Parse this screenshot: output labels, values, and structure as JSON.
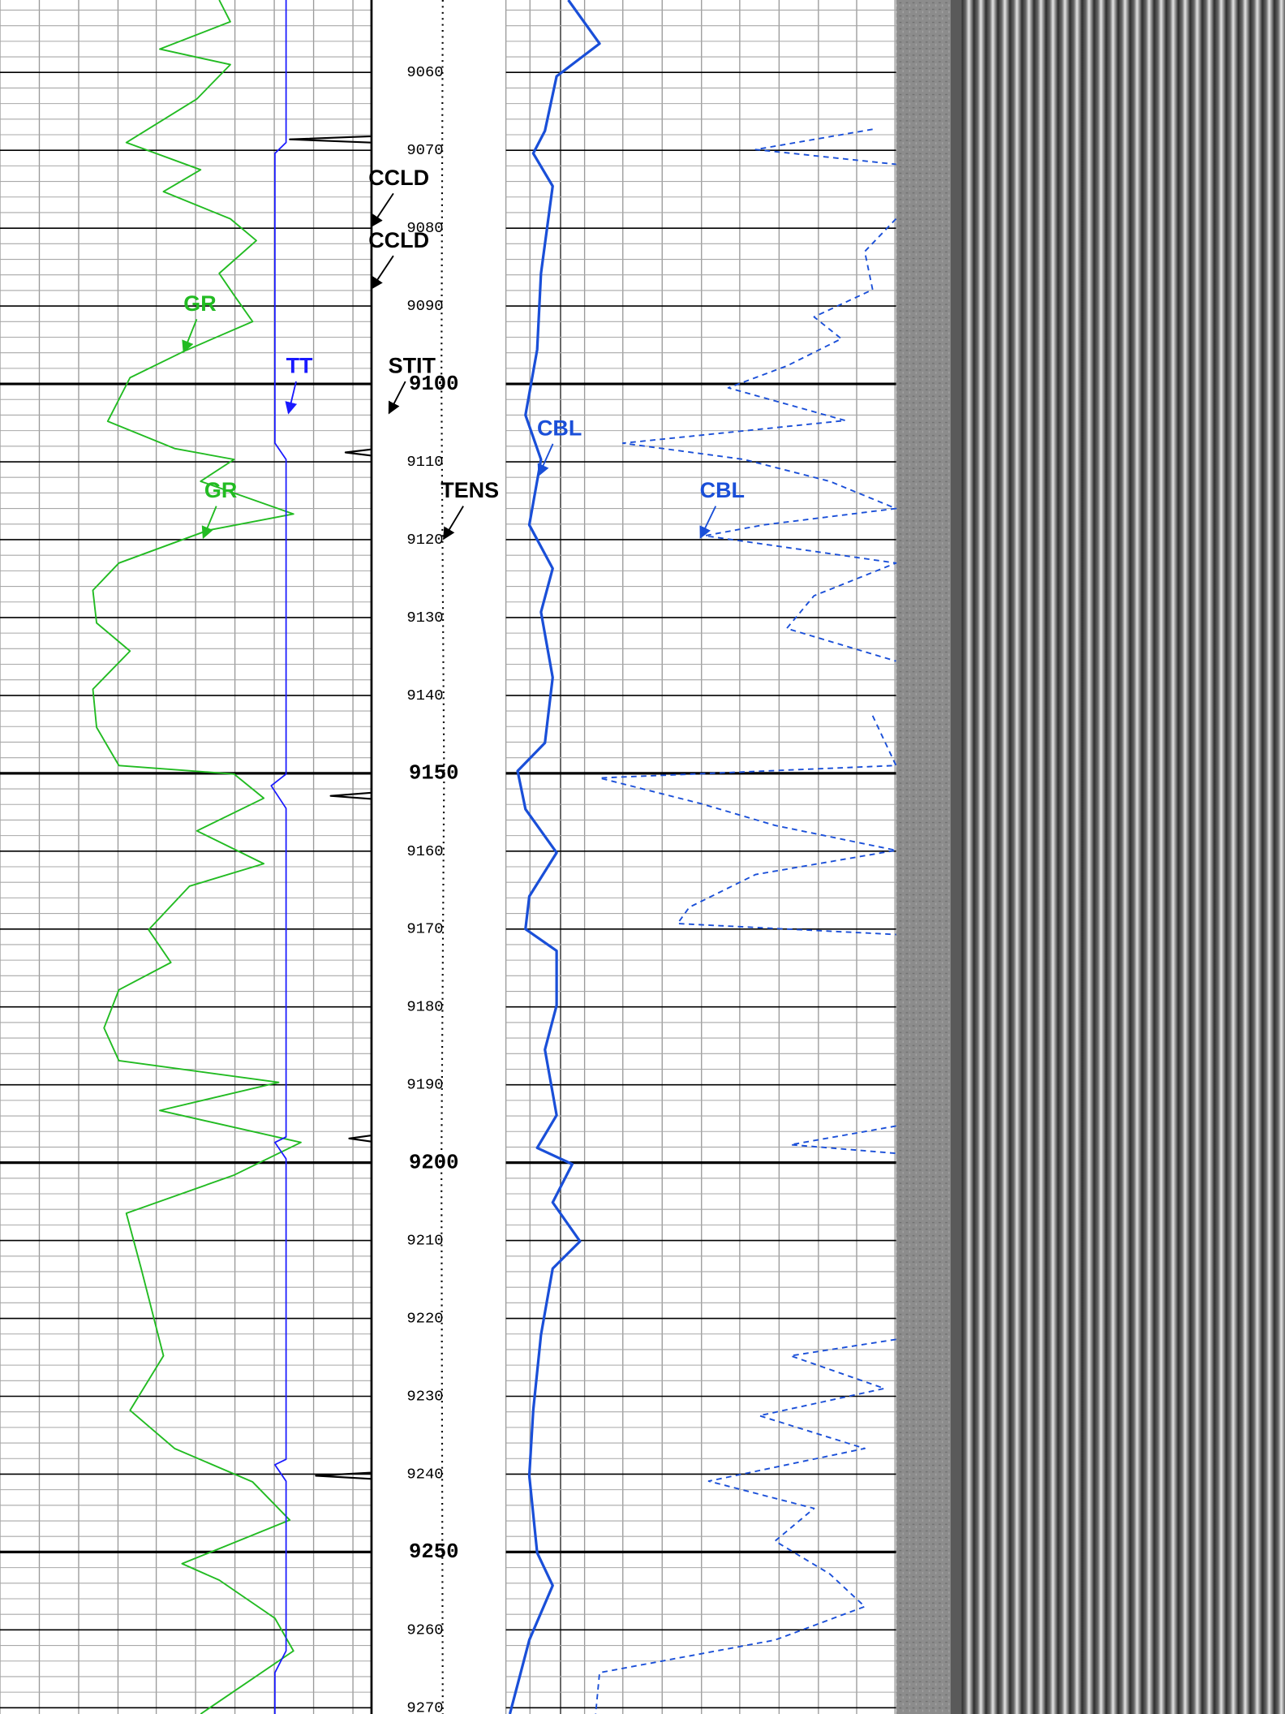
{
  "chart_data": {
    "type": "well-log",
    "ylim": [
      9050.7,
      9270.8
    ],
    "yticks": [
      9060,
      9070,
      9080,
      9090,
      9100,
      9110,
      9120,
      9130,
      9140,
      9150,
      9160,
      9170,
      9180,
      9190,
      9200,
      9210,
      9220,
      9230,
      9240,
      9250,
      9260,
      9270
    ],
    "xlim": [
      0,
      100
    ],
    "grid": true,
    "series": [
      {
        "name": "GR",
        "track": 1,
        "color": "#22bb22",
        "style": "solid",
        "depths": [
          9050.7,
          9053.5,
          9057,
          9059,
          9063.4,
          9069,
          9072.5,
          9075.3,
          9078.8,
          9081.6,
          9085.8,
          9088.6,
          9092,
          9095.7,
          9099.2,
          9104.8,
          9108.3,
          9109.7,
          9112.5,
          9116.7,
          9118.8,
          9123,
          9126.5,
          9130.7,
          9134.3,
          9139.2,
          9144.1,
          9149,
          9150.1,
          9153.2,
          9157.4,
          9161.6,
          9164.5,
          9170.1,
          9174.3,
          9177.8,
          9182.7,
          9186.9,
          9189.7,
          9193.3,
          9197.4,
          9201.6,
          9206.5,
          9213.6,
          9224.8,
          9231.8,
          9236.7,
          9241,
          9245.9,
          9251.5,
          9253.6,
          9258.5,
          9262.7,
          9270.8
        ],
        "values": [
          59,
          62,
          43,
          62,
          53,
          34,
          54,
          44,
          62,
          69,
          59,
          63,
          68,
          50,
          35,
          29,
          47,
          63,
          54,
          79,
          56,
          32,
          25,
          26,
          35,
          25,
          26,
          32,
          63,
          71,
          53,
          71,
          51,
          40,
          46,
          32,
          28,
          32,
          75,
          43,
          81,
          63,
          34,
          38,
          44,
          35,
          47,
          68,
          78,
          49,
          59,
          74,
          79,
          54
        ]
      },
      {
        "name": "TT",
        "track": 1,
        "color": "#1a1aff",
        "style": "solid",
        "depths": [
          9050.7,
          9069,
          9070.4,
          9107.6,
          9109.7,
          9150.1,
          9151.6,
          9154.5,
          9196.7,
          9197.4,
          9199.5,
          9238.1,
          9238.8,
          9240.9,
          9262.7,
          9265.5,
          9270.8
        ],
        "values": [
          77,
          77,
          74,
          74,
          77,
          77,
          73,
          77,
          77,
          74,
          77,
          77,
          74,
          77,
          77,
          74,
          74
        ]
      },
      {
        "name": "CCLD",
        "track": 1,
        "color": "#000000",
        "style": "solid",
        "depths": [
          9050.7,
          9068.2,
          9068.6,
          9069.0,
          9108.4,
          9108.8,
          9109.2,
          9152.5,
          9152.9,
          9153.3,
          9196.5,
          9196.9,
          9197.3,
          9239.8,
          9240.2,
          9240.6,
          9270.8
        ],
        "values": [
          100,
          100,
          78,
          100,
          100,
          93,
          100,
          100,
          89,
          100,
          100,
          94,
          100,
          100,
          85,
          100,
          100
        ]
      },
      {
        "name": "TENS",
        "track": "depth",
        "color": "#000000",
        "style": "dotted",
        "depths": [
          9050.7,
          9100,
          9150,
          9200,
          9270.8
        ],
        "values": [
          53,
          52,
          54,
          52,
          53
        ]
      },
      {
        "name": "CBL",
        "track": 2,
        "color": "#1a4fd8",
        "style": "solid",
        "depths": [
          9050.7,
          9056.3,
          9060.5,
          9067.5,
          9070.4,
          9074.6,
          9085.8,
          9095.6,
          9104.0,
          9109.7,
          9118.1,
          9123.7,
          9129.3,
          9137.7,
          9146.1,
          9149.7,
          9154.6,
          9160.2,
          9165.8,
          9170.0,
          9172.8,
          9179.8,
          9185.5,
          9193.9,
          9198.1,
          9200.2,
          9205.1,
          9210.1,
          9213.6,
          9222.1,
          9231.8,
          9240.2,
          9250.1,
          9254.3,
          9261.3,
          9270.8
        ],
        "values": [
          16,
          24,
          13,
          10,
          7,
          12,
          9,
          8,
          5,
          9,
          6,
          12,
          9,
          12,
          10,
          3,
          5,
          13,
          6,
          5,
          13,
          13,
          10,
          13,
          8,
          17,
          12,
          19,
          12,
          9,
          7,
          6,
          8,
          12,
          6,
          1
        ]
      },
      {
        "name": "CBL",
        "track": 2,
        "color": "#1a4fd8",
        "style": "dashed",
        "depths": [
          9050.7,
          9067.3,
          9069.9,
          9071.8,
          9078.1,
          9078.8,
          9083,
          9087.9,
          9091.4,
          9094.2,
          9097.7,
          9100.5,
          9104.7,
          9107.6,
          9109.7,
          9112.5,
          9116,
          9118.1,
          9119.5,
          9123,
          9127.2,
          9131.4,
          9135.6,
          9137.7,
          9142.6,
          9149,
          9150.6,
          9153.9,
          9156.7,
          9159.9,
          9163,
          9167.2,
          9169.3,
          9170.7,
          9172.8,
          9189.7,
          9191.1,
          9195.3,
          9197.7,
          9198.8,
          9200.9,
          9222.7,
          9224.8,
          9229,
          9232.5,
          9236.7,
          9238.8,
          9240.9,
          9244.4,
          9248.6,
          9252.8,
          9257,
          9261.3,
          9265.5,
          9270.8
        ],
        "values": [
          null,
          94,
          64,
          100,
          null,
          100,
          92,
          94,
          79,
          86,
          72,
          57,
          87,
          30,
          61,
          83,
          100,
          66,
          51,
          100,
          79,
          72,
          100,
          null,
          94,
          100,
          24,
          50,
          69,
          100,
          64,
          47,
          44,
          100,
          null,
          100,
          null,
          100,
          73,
          100,
          null,
          100,
          73,
          97,
          65,
          92,
          72,
          52,
          79,
          69,
          83,
          92,
          69,
          24,
          23
        ]
      }
    ],
    "annotations": [
      "STIT"
    ]
  }
}
